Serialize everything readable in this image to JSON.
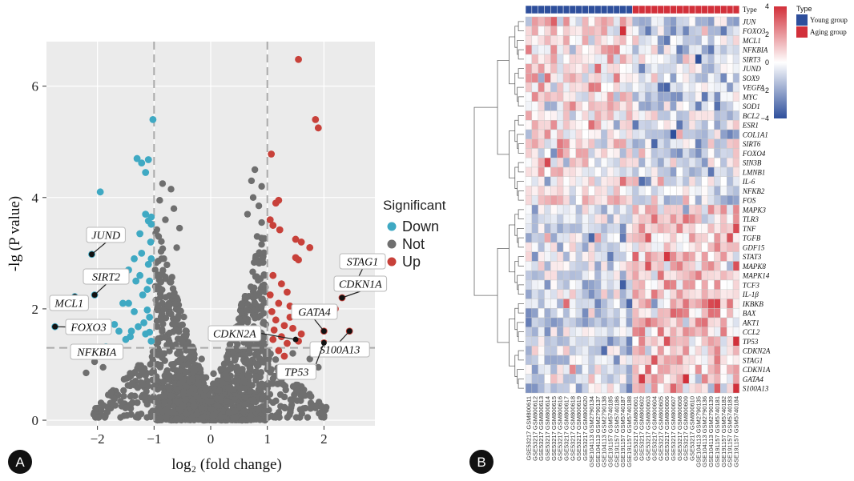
{
  "chart_data": [
    {
      "type": "scatter",
      "panel_label": "A",
      "title": "",
      "xlabel": "log₂ (fold change)",
      "ylabel": "-lg (P value)",
      "xlim": [
        -2.9,
        2.9
      ],
      "ylim": [
        -0.1,
        6.8
      ],
      "xticks": [
        -2,
        -1,
        0,
        1,
        2
      ],
      "yticks": [
        0,
        2,
        4,
        6
      ],
      "thresholds": {
        "x": [
          -1,
          1
        ],
        "y": 1.3
      },
      "legend": {
        "title": "Significant",
        "position": "right",
        "entries": [
          {
            "name": "Down",
            "color": "#3fa9c3"
          },
          {
            "name": "Not",
            "color": "#6f6f6f"
          },
          {
            "name": "Up",
            "color": "#c8413a"
          }
        ]
      },
      "series": [
        {
          "name": "Down",
          "color": "#3fa9c3",
          "points": [
            [
              -2.75,
              1.68
            ],
            [
              -2.4,
              2.22
            ],
            [
              -2.05,
              2.25
            ],
            [
              -2.1,
              2.98
            ],
            [
              -1.95,
              4.1
            ],
            [
              -1.85,
              1.32
            ],
            [
              -1.7,
              1.72
            ],
            [
              -1.62,
              1.6
            ],
            [
              -1.5,
              1.45
            ],
            [
              -1.45,
              2.1
            ],
            [
              -1.55,
              2.1
            ],
            [
              -1.35,
              1.95
            ],
            [
              -1.32,
              2.5
            ],
            [
              -1.35,
              2.9
            ],
            [
              -1.25,
              2.6
            ],
            [
              -1.2,
              2.25
            ],
            [
              -1.18,
              1.75
            ],
            [
              -1.15,
              1.55
            ],
            [
              -1.12,
              1.98
            ],
            [
              -1.3,
              4.7
            ],
            [
              -1.22,
              4.62
            ],
            [
              -1.1,
              4.68
            ],
            [
              -1.15,
              3.7
            ],
            [
              -1.1,
              3.58
            ],
            [
              -1.05,
              3.52
            ],
            [
              -1.1,
              2.8
            ],
            [
              -1.05,
              2.9
            ],
            [
              -1.08,
              2.5
            ],
            [
              -1.05,
              1.42
            ],
            [
              -1.15,
              4.45
            ],
            [
              -1.05,
              3.65
            ],
            [
              -1.45,
              2.7
            ],
            [
              -1.4,
              1.6
            ],
            [
              -1.22,
              3.0
            ],
            [
              -1.12,
              2.35
            ],
            [
              -1.08,
              1.85
            ],
            [
              -1.28,
              1.68
            ],
            [
              -1.02,
              5.4
            ],
            [
              -1.06,
              3.2
            ],
            [
              -1.25,
              3.35
            ],
            [
              -1.08,
              1.58
            ],
            [
              -1.42,
              1.5
            ]
          ]
        },
        {
          "name": "Up",
          "color": "#c8413a",
          "points": [
            [
              1.55,
              6.48
            ],
            [
              1.85,
              5.4
            ],
            [
              1.9,
              5.25
            ],
            [
              1.07,
              4.78
            ],
            [
              1.15,
              3.9
            ],
            [
              1.2,
              3.95
            ],
            [
              1.05,
              3.6
            ],
            [
              1.1,
              3.5
            ],
            [
              1.22,
              3.42
            ],
            [
              1.5,
              3.25
            ],
            [
              1.6,
              3.2
            ],
            [
              1.75,
              3.1
            ],
            [
              1.5,
              2.92
            ],
            [
              1.55,
              2.88
            ],
            [
              1.1,
              2.6
            ],
            [
              1.25,
              2.45
            ],
            [
              1.35,
              2.3
            ],
            [
              1.2,
              2.1
            ],
            [
              1.4,
              2.05
            ],
            [
              1.08,
              1.95
            ],
            [
              1.15,
              1.8
            ],
            [
              1.3,
              1.7
            ],
            [
              1.45,
              1.65
            ],
            [
              1.6,
              1.55
            ],
            [
              1.1,
              1.45
            ],
            [
              1.25,
              1.5
            ],
            [
              1.35,
              1.38
            ],
            [
              1.55,
              1.42
            ],
            [
              2.0,
              1.6
            ],
            [
              2.2,
              2.0
            ],
            [
              2.32,
              2.2
            ],
            [
              2.52,
              2.4
            ],
            [
              2.45,
              1.6
            ],
            [
              1.3,
              1.15
            ],
            [
              1.2,
              1.25
            ],
            [
              1.12,
              1.62
            ],
            [
              1.4,
              1.85
            ],
            [
              1.05,
              2.25
            ],
            [
              2.0,
              1.39
            ]
          ]
        }
      ],
      "not_significant_shape": "dense volcano cloud, |log2FC| < 1 or -lg(P) < 1.3",
      "annotations": [
        {
          "label": "JUND",
          "x": -2.1,
          "y": 2.98
        },
        {
          "label": "SIRT2",
          "x": -2.05,
          "y": 2.25
        },
        {
          "label": "MCL1",
          "x": -2.4,
          "y": 2.22
        },
        {
          "label": "FOXO3",
          "x": -2.75,
          "y": 1.68
        },
        {
          "label": "NFKBIA",
          "x": -1.85,
          "y": 1.32
        },
        {
          "label": "STAG1",
          "x": 2.55,
          "y": 2.45
        },
        {
          "label": "CDKN1A",
          "x": 2.32,
          "y": 2.2
        },
        {
          "label": "GATA4",
          "x": 2.0,
          "y": 1.6
        },
        {
          "label": "CDKN2A",
          "x": 1.5,
          "y": 1.45
        },
        {
          "label": "S100A13",
          "x": 2.45,
          "y": 1.6
        },
        {
          "label": "TP53",
          "x": 2.0,
          "y": 1.39
        }
      ]
    },
    {
      "type": "heatmap",
      "panel_label": "B",
      "title": "",
      "rows": [
        "JUN",
        "FOXO3",
        "MCL1",
        "NFKBIA",
        "SIRT3",
        "JUND",
        "SOX9",
        "VEGFA",
        "MYC",
        "SOD1",
        "BCL2",
        "ESR1",
        "COL1A1",
        "SIRT6",
        "FOXO4",
        "SIN3B",
        "LMNB1",
        "IL-6",
        "NFKB2",
        "FOS",
        "MAPK3",
        "TLR3",
        "TNF",
        "TGFB",
        "GDF15",
        "STAT3",
        "MAPK8",
        "MAPK14",
        "TCF3",
        "IL-1β",
        "IKBKB",
        "BAX",
        "AKT1",
        "CCL2",
        "TP53",
        "CDKN2A",
        "STAG1",
        "CDKN1A",
        "GATA4",
        "S100A13"
      ],
      "columns": [
        "GSE53217 GSM800611",
        "GSE53217 GSM800612",
        "GSE53217 GSM800613",
        "GSE53217 GSM800614",
        "GSE53217 GSM800615",
        "GSE53217 GSM800616",
        "GSE53217 GSM800617",
        "GSE53217 GSM800618",
        "GSE53217 GSM800619",
        "GSE53217 GSM800620",
        "GSE104113 GSM2790134",
        "GSE104113 GSM2790137",
        "GSE104113 GSM2790138",
        "GSE191157 GSM5740185",
        "GSE191157 GSM5740186",
        "GSE191157 GSM5740187",
        "GSE191157 GSM5740188",
        "GSE53217 GSM800601",
        "GSE53217 GSM800602",
        "GSE53217 GSM800603",
        "GSE53217 GSM800604",
        "GSE53217 GSM800605",
        "GSE53217 GSM800606",
        "GSE53217 GSM800607",
        "GSE53217 GSM800608",
        "GSE53217 GSM800609",
        "GSE53217 GSM800610",
        "GSE104113 GSM2790135",
        "GSE104113 GSM2790136",
        "GSE104113 GSM2790139",
        "GSE191157 GSM5740181",
        "GSE191157 GSM5740182",
        "GSE191157 GSM5740183",
        "GSE191157 GSM5740184"
      ],
      "groups": {
        "title": "Type",
        "young": {
          "name": "Young group",
          "color": "#2e4f9c",
          "count": 17
        },
        "aging": {
          "name": "Aging group",
          "color": "#d2303a",
          "count": 17
        }
      },
      "top_row_label": "Type",
      "color_scale": {
        "min": -4,
        "max": 4,
        "ticks": [
          4,
          2,
          0,
          -2,
          -4
        ],
        "low": "#2e4f9c",
        "mid": "#ffffff",
        "high": "#d2303a"
      },
      "pattern": {
        "rows_0_to_19": "higher in Young group, lower in Aging group",
        "rows_20_to_39": "lower in Young group, higher in Aging group"
      },
      "legend_position": "right"
    }
  ]
}
